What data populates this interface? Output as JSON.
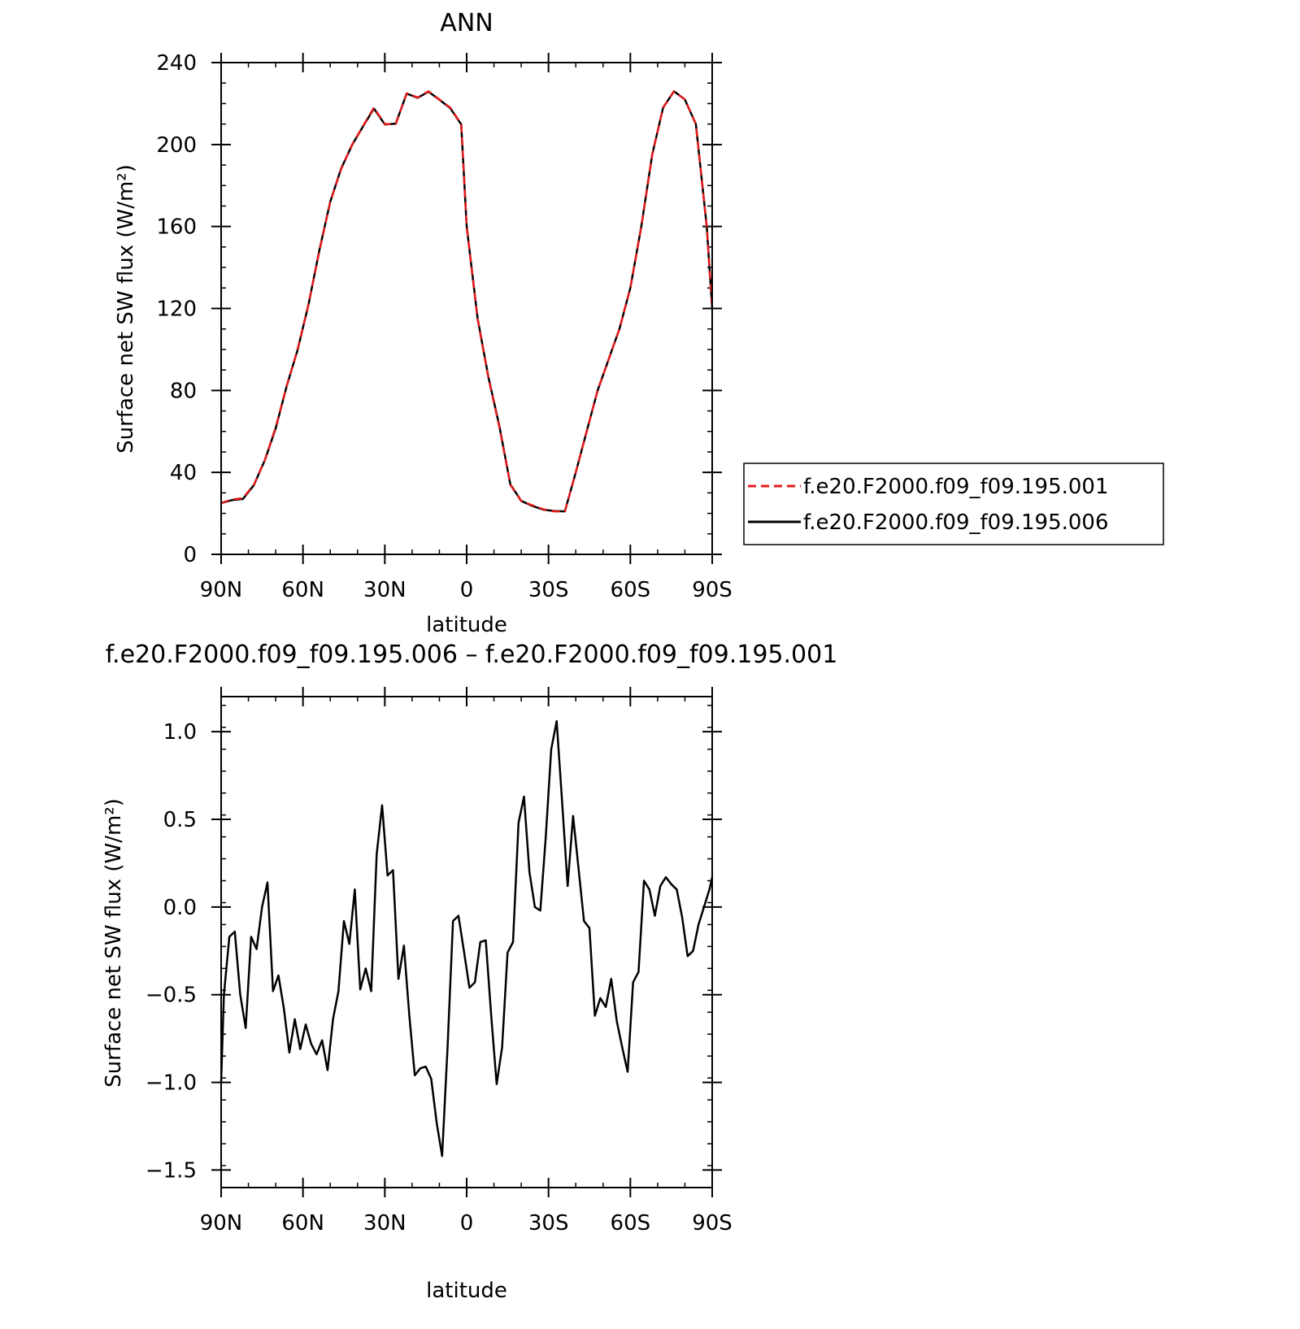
{
  "chart_data": [
    {
      "type": "line",
      "title": "ANN",
      "xlabel": "latitude",
      "ylabel": "Surface net SW flux (W/m²)",
      "xlim": [
        90,
        -90
      ],
      "ylim": [
        0,
        240
      ],
      "x_ticks": [
        90,
        60,
        30,
        0,
        -30,
        -60,
        -90
      ],
      "x_tick_labels": [
        "90N",
        "60N",
        "30N",
        "0",
        "30S",
        "60S",
        "90S"
      ],
      "y_ticks": [
        0,
        40,
        80,
        120,
        160,
        200,
        240
      ],
      "y_tick_labels": [
        "0",
        "40",
        "80",
        "120",
        "160",
        "200",
        "240"
      ],
      "grid": false,
      "legend_position": "right",
      "x": [
        90,
        86,
        82,
        78,
        74,
        70,
        66,
        62,
        58,
        54,
        50,
        46,
        42,
        38,
        34,
        30,
        26,
        22,
        18,
        14,
        10,
        6,
        2,
        0,
        -4,
        -8,
        -12,
        -16,
        -20,
        -24,
        -28,
        -32,
        -36,
        -40,
        -44,
        -48,
        -52,
        -56,
        -60,
        -64,
        -68,
        -72,
        -76,
        -80,
        -84,
        -88,
        -90
      ],
      "series": [
        {
          "name": "f.e20.F2000.f09_f09.195.001",
          "color": "#e41a1c",
          "dash": "dashed",
          "values": [
            25,
            26.8,
            27.4,
            34,
            46,
            62,
            82,
            100,
            122,
            148,
            172,
            188,
            200,
            209,
            218,
            210,
            210,
            225,
            223,
            226,
            222,
            218,
            210,
            160,
            115,
            86,
            62,
            34,
            26,
            24,
            22,
            21,
            21,
            40,
            60,
            80,
            95,
            110,
            130,
            160,
            195,
            218,
            226,
            222,
            210,
            160,
            120
          ]
        },
        {
          "name": "f.e20.F2000.f09_f09.195.006",
          "color": "#000000",
          "dash": "solid",
          "values": [
            25,
            26.5,
            27.0,
            33.8,
            45.9,
            61.5,
            81.9,
            99.7,
            121.8,
            148.4,
            172.1,
            188.3,
            199.8,
            208.8,
            217.6,
            209.8,
            210.2,
            224.9,
            222.8,
            225.8,
            221.9,
            217.7,
            209.8,
            160.2,
            115.3,
            86.4,
            62.5,
            34.2,
            26.1,
            23.7,
            21.8,
            21.2,
            21.0,
            40.0,
            60.0,
            80.0,
            95.0,
            110.0,
            130.0,
            160.0,
            195.0,
            218.0,
            226.0,
            222.0,
            210.0,
            160.0,
            120.0
          ]
        }
      ]
    },
    {
      "type": "line",
      "title": "f.e20.F2000.f09_f09.195.006 – f.e20.F2000.f09_f09.195.001",
      "xlabel": "latitude",
      "ylabel": "Surface net SW flux (W/m²)",
      "xlim": [
        90,
        -90
      ],
      "ylim": [
        -1.6,
        1.2
      ],
      "x_ticks": [
        90,
        60,
        30,
        0,
        -30,
        -60,
        -90
      ],
      "x_tick_labels": [
        "90N",
        "60N",
        "30N",
        "0",
        "30S",
        "60S",
        "90S"
      ],
      "y_ticks": [
        -1.5,
        -1.0,
        -0.5,
        0.0,
        0.5,
        1.0
      ],
      "y_tick_labels": [
        "−1.5",
        "−1.0",
        "−0.5",
        "0.0",
        "0.5",
        "1.0"
      ],
      "grid": false,
      "x": [
        90,
        89,
        87,
        85,
        83,
        81,
        79,
        77,
        75,
        73,
        71,
        69,
        67,
        65,
        63,
        61,
        59,
        57,
        55,
        53,
        51,
        49,
        47,
        45,
        43,
        41,
        39,
        37,
        35,
        33,
        31,
        29,
        27,
        25,
        23,
        21,
        19,
        17,
        15,
        13,
        11,
        9,
        7,
        5,
        3,
        1,
        -1,
        -3,
        -5,
        -7,
        -9,
        -11,
        -13,
        -15,
        -17,
        -19,
        -21,
        -23,
        -25,
        -27,
        -29,
        -31,
        -33,
        -35,
        -37,
        -39,
        -41,
        -43,
        -45,
        -47,
        -49,
        -51,
        -53,
        -55,
        -57,
        -59,
        -61,
        -63,
        -65,
        -67,
        -69,
        -71,
        -73,
        -75,
        -77,
        -79,
        -81,
        -83,
        -85,
        -87,
        -89,
        -90
      ],
      "series": [
        {
          "name": "",
          "color": "#000000",
          "dash": "solid",
          "values": [
            -1.0,
            -0.5,
            -0.17,
            -0.14,
            -0.5,
            -0.69,
            -0.17,
            -0.24,
            0.0,
            0.14,
            -0.48,
            -0.39,
            -0.58,
            -0.83,
            -0.64,
            -0.81,
            -0.67,
            -0.78,
            -0.84,
            -0.76,
            -0.93,
            -0.64,
            -0.48,
            -0.08,
            -0.21,
            0.1,
            -0.47,
            -0.35,
            -0.48,
            0.3,
            0.58,
            0.18,
            0.21,
            -0.41,
            -0.22,
            -0.62,
            -0.96,
            -0.92,
            -0.91,
            -0.98,
            -1.23,
            -1.42,
            -0.8,
            -0.08,
            -0.05,
            -0.25,
            -0.46,
            -0.43,
            -0.2,
            -0.19,
            -0.62,
            -1.01,
            -0.8,
            -0.26,
            -0.2,
            0.48,
            0.63,
            0.2,
            0.0,
            -0.02,
            0.4,
            0.9,
            1.06,
            0.6,
            0.12,
            0.52,
            0.22,
            -0.08,
            -0.12,
            -0.62,
            -0.52,
            -0.57,
            -0.41,
            -0.65,
            -0.8,
            -0.94,
            -0.43,
            -0.37,
            0.15,
            0.1,
            -0.05,
            0.12,
            0.17,
            0.13,
            0.1,
            -0.06,
            -0.28,
            -0.25,
            -0.1,
            0.0,
            0.1,
            0.17
          ]
        }
      ]
    }
  ]
}
